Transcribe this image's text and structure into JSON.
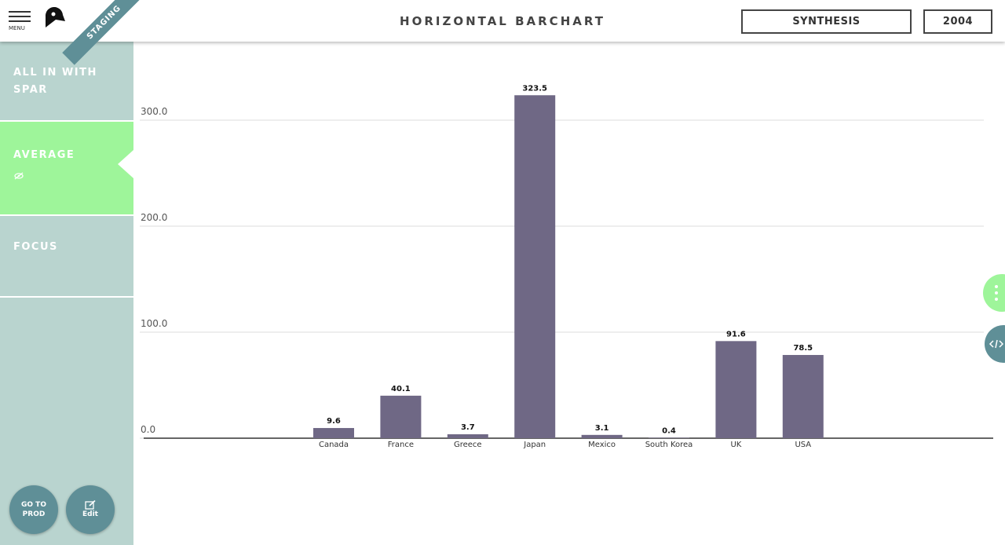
{
  "header": {
    "menu_label": "MENU",
    "badge": "STAGING",
    "title": "HORIZONTAL BARCHART",
    "buttons": [
      "SYNTHESIS",
      "2004"
    ]
  },
  "sidebar": {
    "items": [
      "ALL IN WITH SPAR",
      "AVERAGE",
      "FOCUS"
    ],
    "actions": [
      "GO TO PROD",
      "Edit"
    ]
  },
  "chart_data": {
    "type": "bar",
    "categories": [
      "Canada",
      "France",
      "Greece",
      "Japan",
      "Mexico",
      "South Korea",
      "UK",
      "USA"
    ],
    "values": [
      9.6,
      40.1,
      3.7,
      323.5,
      3.1,
      0.4,
      91.6,
      78.5
    ],
    "color": "#6f6885",
    "ylim": [
      0,
      340
    ],
    "yticks": [
      {
        "value": 0,
        "label": "0.0"
      },
      {
        "value": 100,
        "label": "100.0"
      },
      {
        "value": 200,
        "label": "200.0"
      },
      {
        "value": 300,
        "label": "300.0"
      }
    ],
    "grid": true
  }
}
